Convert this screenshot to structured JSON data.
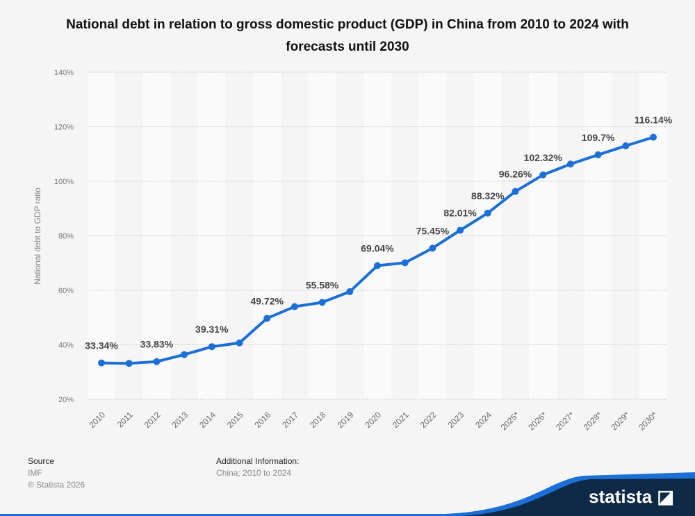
{
  "chart_data": {
    "type": "line",
    "title": "National debt in relation to gross domestic product (GDP) in China from 2010 to 2024 with forecasts until 2030",
    "ylabel": "National debt to GDP ratio",
    "xlabel": "",
    "categories": [
      "2010",
      "2011",
      "2012",
      "2013",
      "2014",
      "2015",
      "2016",
      "2017",
      "2018",
      "2019",
      "2020",
      "2021",
      "2022",
      "2023",
      "2024",
      "2025*",
      "2026*",
      "2027*",
      "2028*",
      "2029*",
      "2030*"
    ],
    "values": [
      33.34,
      33.2,
      33.83,
      36.4,
      39.31,
      40.7,
      49.72,
      54.0,
      55.58,
      59.5,
      69.04,
      70.1,
      75.45,
      82.01,
      88.32,
      96.26,
      102.32,
      106.3,
      109.7,
      113.0,
      116.14
    ],
    "data_labels": [
      "33.34%",
      null,
      "33.83%",
      null,
      "39.31%",
      null,
      "49.72%",
      null,
      "55.58%",
      null,
      "69.04%",
      null,
      "75.45%",
      "82.01%",
      "88.32%",
      "96.26%",
      "102.32%",
      null,
      "109.7%",
      null,
      "116.14%"
    ],
    "yticks": [
      "20%",
      "40%",
      "60%",
      "80%",
      "100%",
      "120%",
      "140%"
    ],
    "ylim": [
      20,
      140
    ],
    "grid": true,
    "line_color": "#1b6fd6"
  },
  "footer": {
    "source_label": "Source",
    "source": "IMF",
    "copyright": "© Statista 2026",
    "additional_label": "Additional Information:",
    "additional": "China; 2010 to 2024",
    "brand": "statista"
  }
}
